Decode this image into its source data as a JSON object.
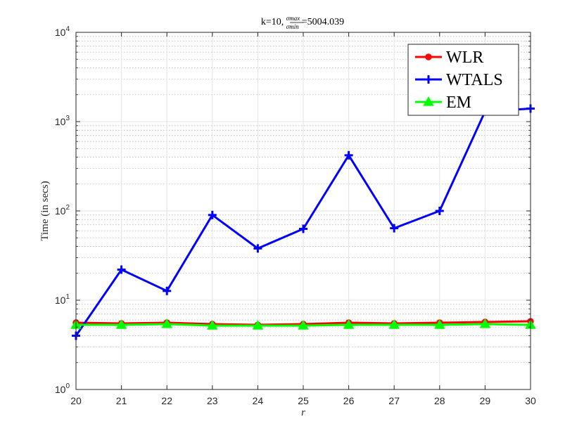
{
  "chart_data": {
    "type": "line",
    "title": {
      "prefix": "k=10, ",
      "frac_num": "σmax",
      "frac_den": "σmin",
      "suffix": "=5004.039"
    },
    "xlabel": "r",
    "ylabel": "Time (in secs)",
    "xlim": [
      20,
      30
    ],
    "ylim": [
      1,
      10000
    ],
    "yscale": "log",
    "grid": true,
    "minor_grid": true,
    "legend_position": "top-right",
    "x": [
      20,
      21,
      22,
      23,
      24,
      25,
      26,
      27,
      28,
      29,
      30
    ],
    "x_tick_labels": [
      "20",
      "21",
      "22",
      "23",
      "24",
      "25",
      "26",
      "27",
      "28",
      "29",
      "30"
    ],
    "y_tick_labels": [
      {
        "base": "10",
        "exp": "0"
      },
      {
        "base": "10",
        "exp": "1"
      },
      {
        "base": "10",
        "exp": "2"
      },
      {
        "base": "10",
        "exp": "3"
      },
      {
        "base": "10",
        "exp": "4"
      }
    ],
    "series": [
      {
        "name": "WLR",
        "color": "#ff0000",
        "marker": "circle",
        "values": [
          5.6,
          5.5,
          5.6,
          5.4,
          5.3,
          5.4,
          5.6,
          5.5,
          5.6,
          5.7,
          5.8
        ]
      },
      {
        "name": "WTALS",
        "color": "#0000ff",
        "marker": "plus",
        "values": [
          4.0,
          22,
          12.7,
          90,
          38,
          63,
          420,
          64,
          100,
          1300,
          1400
        ]
      },
      {
        "name": "EM",
        "color": "#00ff00",
        "marker": "triangle",
        "values": [
          5.3,
          5.3,
          5.4,
          5.2,
          5.2,
          5.2,
          5.3,
          5.3,
          5.3,
          5.4,
          5.3
        ]
      }
    ]
  }
}
